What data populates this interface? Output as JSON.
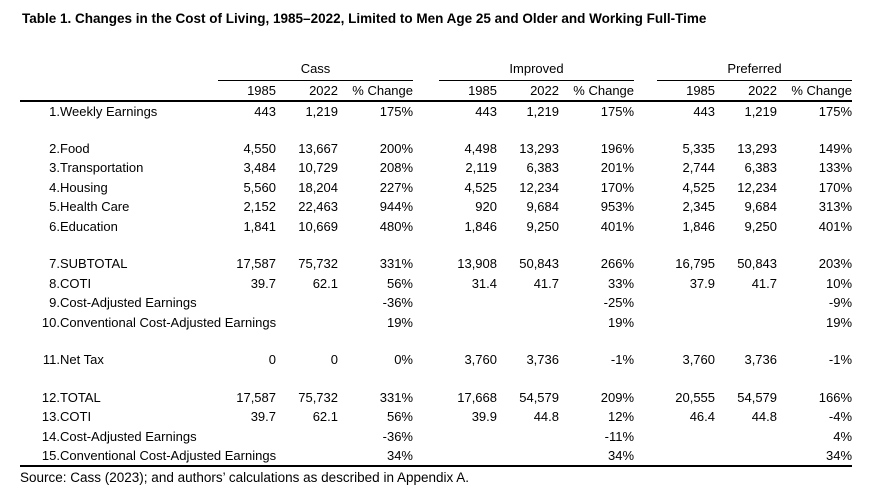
{
  "title": "Table 1. Changes in the Cost of Living, 1985–2022, Limited to Men Age 25 and Older and Working Full-Time",
  "source": "Source: Cass (2023); and authors’ calculations as described in Appendix A.",
  "table": {
    "groups": [
      "Cass",
      "Improved",
      "Preferred"
    ],
    "subheaders": [
      "1985",
      "2022",
      "% Change"
    ],
    "rows": [
      {
        "num": "1.",
        "label": "Weekly Earnings",
        "gap_before": false,
        "cass": [
          "443",
          "1,219",
          "175%"
        ],
        "improved": [
          "443",
          "1,219",
          "175%"
        ],
        "preferred": [
          "443",
          "1,219",
          "175%"
        ]
      },
      {
        "num": "2.",
        "label": "Food",
        "gap_before": true,
        "cass": [
          "4,550",
          "13,667",
          "200%"
        ],
        "improved": [
          "4,498",
          "13,293",
          "196%"
        ],
        "preferred": [
          "5,335",
          "13,293",
          "149%"
        ]
      },
      {
        "num": "3.",
        "label": "Transportation",
        "gap_before": false,
        "cass": [
          "3,484",
          "10,729",
          "208%"
        ],
        "improved": [
          "2,119",
          "6,383",
          "201%"
        ],
        "preferred": [
          "2,744",
          "6,383",
          "133%"
        ]
      },
      {
        "num": "4.",
        "label": "Housing",
        "gap_before": false,
        "cass": [
          "5,560",
          "18,204",
          "227%"
        ],
        "improved": [
          "4,525",
          "12,234",
          "170%"
        ],
        "preferred": [
          "4,525",
          "12,234",
          "170%"
        ]
      },
      {
        "num": "5.",
        "label": "Health Care",
        "gap_before": false,
        "cass": [
          "2,152",
          "22,463",
          "944%"
        ],
        "improved": [
          "920",
          "9,684",
          "953%"
        ],
        "preferred": [
          "2,345",
          "9,684",
          "313%"
        ]
      },
      {
        "num": "6.",
        "label": "Education",
        "gap_before": false,
        "cass": [
          "1,841",
          "10,669",
          "480%"
        ],
        "improved": [
          "1,846",
          "9,250",
          "401%"
        ],
        "preferred": [
          "1,846",
          "9,250",
          "401%"
        ]
      },
      {
        "num": "7.",
        "label": "SUBTOTAL",
        "gap_before": true,
        "cass": [
          "17,587",
          "75,732",
          "331%"
        ],
        "improved": [
          "13,908",
          "50,843",
          "266%"
        ],
        "preferred": [
          "16,795",
          "50,843",
          "203%"
        ]
      },
      {
        "num": "8.",
        "label": "COTI",
        "gap_before": false,
        "cass": [
          "39.7",
          "62.1",
          "56%"
        ],
        "improved": [
          "31.4",
          "41.7",
          "33%"
        ],
        "preferred": [
          "37.9",
          "41.7",
          "10%"
        ]
      },
      {
        "num": "9.",
        "label": "Cost-Adjusted Earnings",
        "gap_before": false,
        "cass": [
          "",
          "",
          "-36%"
        ],
        "improved": [
          "",
          "",
          "-25%"
        ],
        "preferred": [
          "",
          "",
          "-9%"
        ]
      },
      {
        "num": "10.",
        "label": "Conventional Cost-Adjusted Earnings",
        "gap_before": false,
        "cass": [
          "",
          "",
          "19%"
        ],
        "improved": [
          "",
          "",
          "19%"
        ],
        "preferred": [
          "",
          "",
          "19%"
        ]
      },
      {
        "num": "11.",
        "label": "Net Tax",
        "gap_before": true,
        "cass": [
          "0",
          "0",
          "0%"
        ],
        "improved": [
          "3,760",
          "3,736",
          "-1%"
        ],
        "preferred": [
          "3,760",
          "3,736",
          "-1%"
        ]
      },
      {
        "num": "12.",
        "label": "TOTAL",
        "gap_before": true,
        "cass": [
          "17,587",
          "75,732",
          "331%"
        ],
        "improved": [
          "17,668",
          "54,579",
          "209%"
        ],
        "preferred": [
          "20,555",
          "54,579",
          "166%"
        ]
      },
      {
        "num": "13.",
        "label": "COTI",
        "gap_before": false,
        "cass": [
          "39.7",
          "62.1",
          "56%"
        ],
        "improved": [
          "39.9",
          "44.8",
          "12%"
        ],
        "preferred": [
          "46.4",
          "44.8",
          "-4%"
        ]
      },
      {
        "num": "14.",
        "label": "Cost-Adjusted Earnings",
        "gap_before": false,
        "cass": [
          "",
          "",
          "-36%"
        ],
        "improved": [
          "",
          "",
          "-11%"
        ],
        "preferred": [
          "",
          "",
          "4%"
        ]
      },
      {
        "num": "15.",
        "label": "Conventional Cost-Adjusted Earnings",
        "gap_before": false,
        "cass": [
          "",
          "",
          "34%"
        ],
        "improved": [
          "",
          "",
          "34%"
        ],
        "preferred": [
          "",
          "",
          "34%"
        ]
      }
    ]
  }
}
